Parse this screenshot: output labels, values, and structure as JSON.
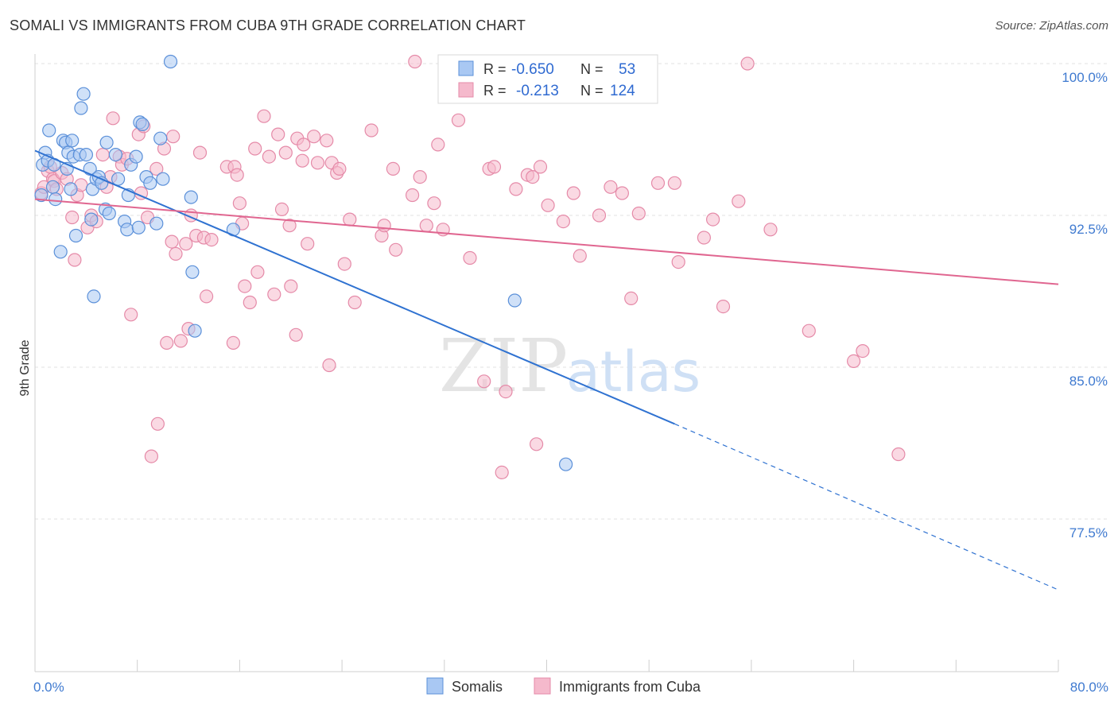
{
  "header": {
    "title": "SOMALI VS IMMIGRANTS FROM CUBA 9TH GRADE CORRELATION CHART",
    "source": "Source: ZipAtlas.com"
  },
  "watermark": {
    "zip": "ZIP",
    "atlas": "atlas"
  },
  "colors": {
    "somali_fill": "#a9c8f3",
    "somali_stroke": "#5b90d9",
    "somali_line": "#2f72d1",
    "cuba_fill": "#f5b9cc",
    "cuba_stroke": "#e58aa8",
    "cuba_line": "#e06690",
    "tick_label": "#3f7ad0",
    "grid": "#e2e2e2"
  },
  "legend": {
    "rows": [
      {
        "r_label": "R =",
        "r_value": "-0.650",
        "n_label": "N =",
        "n_value": "53"
      },
      {
        "r_label": "R =",
        "r_value": "-0.213",
        "n_label": "N =",
        "n_value": "124"
      }
    ]
  },
  "bottom_legend": {
    "series1": "Somalis",
    "series2": "Immigrants from Cuba"
  },
  "chart_data": {
    "type": "scatter",
    "title": "SOMALI VS IMMIGRANTS FROM CUBA 9TH GRADE CORRELATION CHART",
    "xlabel": "",
    "ylabel": "9th Grade",
    "xlim": [
      0,
      80
    ],
    "ylim": [
      72.5,
      100.8
    ],
    "x_tick_labels": [
      "0.0%",
      "80.0%"
    ],
    "y_ticks": [
      77.5,
      85.0,
      92.5,
      100.0
    ],
    "y_tick_labels": [
      "77.5%",
      "85.0%",
      "92.5%",
      "100.0%"
    ],
    "grid": "horizontal dashed",
    "legend_position": "top-center",
    "series": [
      {
        "name": "Somalis",
        "r": -0.65,
        "n": 53,
        "trend": {
          "x_start": 0,
          "y_start": 95.7,
          "x_solid_end": 50,
          "y_solid_end": 82.2,
          "x_end": 80,
          "y_end": 74.0
        },
        "points": [
          [
            0.5,
            93.5
          ],
          [
            0.6,
            95.0
          ],
          [
            0.8,
            95.6
          ],
          [
            1.0,
            95.2
          ],
          [
            1.1,
            96.7
          ],
          [
            1.4,
            93.9
          ],
          [
            1.5,
            95.0
          ],
          [
            1.6,
            93.3
          ],
          [
            2.0,
            90.7
          ],
          [
            2.2,
            96.2
          ],
          [
            2.4,
            96.1
          ],
          [
            2.5,
            94.8
          ],
          [
            2.6,
            95.6
          ],
          [
            2.8,
            93.8
          ],
          [
            2.9,
            96.2
          ],
          [
            3.0,
            95.4
          ],
          [
            3.2,
            91.5
          ],
          [
            3.5,
            95.5
          ],
          [
            3.6,
            97.8
          ],
          [
            3.8,
            98.5
          ],
          [
            4.0,
            95.5
          ],
          [
            4.3,
            94.8
          ],
          [
            4.4,
            92.3
          ],
          [
            4.5,
            93.8
          ],
          [
            4.6,
            88.5
          ],
          [
            4.8,
            94.3
          ],
          [
            5.0,
            94.4
          ],
          [
            5.2,
            94.1
          ],
          [
            5.5,
            92.8
          ],
          [
            5.6,
            96.1
          ],
          [
            5.8,
            92.6
          ],
          [
            6.3,
            95.5
          ],
          [
            6.5,
            94.3
          ],
          [
            7.0,
            92.2
          ],
          [
            7.2,
            91.8
          ],
          [
            7.3,
            93.5
          ],
          [
            7.5,
            95.0
          ],
          [
            7.9,
            95.4
          ],
          [
            8.1,
            91.9
          ],
          [
            8.2,
            97.1
          ],
          [
            8.4,
            97.0
          ],
          [
            8.7,
            94.4
          ],
          [
            9.0,
            94.1
          ],
          [
            9.5,
            92.1
          ],
          [
            9.8,
            96.3
          ],
          [
            10.0,
            94.3
          ],
          [
            10.6,
            100.1
          ],
          [
            12.2,
            93.4
          ],
          [
            12.3,
            89.7
          ],
          [
            12.5,
            86.8
          ],
          [
            15.5,
            91.8
          ],
          [
            37.5,
            88.3
          ],
          [
            41.5,
            80.2
          ]
        ]
      },
      {
        "name": "Immigrants from Cuba",
        "r": -0.213,
        "n": 124,
        "trend": {
          "x_start": 0,
          "y_start": 93.3,
          "x_end": 80,
          "y_end": 89.1
        },
        "points": [
          [
            0.5,
            93.6
          ],
          [
            0.7,
            93.9
          ],
          [
            1.0,
            94.7
          ],
          [
            1.2,
            94.9
          ],
          [
            1.4,
            94.3
          ],
          [
            1.5,
            94.2
          ],
          [
            1.7,
            93.8
          ],
          [
            2.1,
            94.6
          ],
          [
            2.5,
            94.3
          ],
          [
            2.9,
            92.4
          ],
          [
            3.1,
            90.3
          ],
          [
            3.3,
            93.5
          ],
          [
            3.6,
            94.0
          ],
          [
            4.1,
            91.9
          ],
          [
            4.4,
            92.5
          ],
          [
            4.8,
            92.2
          ],
          [
            5.3,
            95.5
          ],
          [
            5.6,
            93.9
          ],
          [
            5.9,
            94.4
          ],
          [
            6.1,
            97.3
          ],
          [
            6.6,
            95.4
          ],
          [
            6.8,
            95.0
          ],
          [
            7.2,
            95.3
          ],
          [
            7.5,
            87.6
          ],
          [
            8.1,
            96.5
          ],
          [
            8.3,
            93.6
          ],
          [
            8.5,
            96.9
          ],
          [
            8.8,
            92.4
          ],
          [
            9.5,
            94.8
          ],
          [
            9.6,
            82.2
          ],
          [
            9.1,
            80.6
          ],
          [
            10.1,
            95.8
          ],
          [
            10.3,
            86.2
          ],
          [
            10.7,
            91.2
          ],
          [
            10.8,
            96.4
          ],
          [
            11.0,
            90.6
          ],
          [
            11.4,
            86.3
          ],
          [
            11.8,
            91.1
          ],
          [
            12.0,
            86.9
          ],
          [
            12.2,
            92.5
          ],
          [
            12.6,
            91.5
          ],
          [
            12.9,
            95.6
          ],
          [
            13.2,
            91.4
          ],
          [
            13.4,
            88.5
          ],
          [
            13.8,
            91.3
          ],
          [
            15.0,
            94.9
          ],
          [
            15.5,
            86.2
          ],
          [
            15.6,
            94.9
          ],
          [
            15.8,
            94.5
          ],
          [
            16.0,
            93.1
          ],
          [
            16.2,
            92.1
          ],
          [
            16.4,
            89.0
          ],
          [
            16.8,
            88.2
          ],
          [
            17.2,
            95.8
          ],
          [
            17.4,
            89.7
          ],
          [
            17.9,
            97.4
          ],
          [
            18.3,
            95.4
          ],
          [
            18.7,
            88.6
          ],
          [
            19.0,
            96.5
          ],
          [
            19.3,
            92.8
          ],
          [
            19.6,
            95.6
          ],
          [
            19.9,
            92.0
          ],
          [
            20.0,
            89.0
          ],
          [
            20.4,
            86.6
          ],
          [
            20.5,
            96.3
          ],
          [
            20.9,
            95.2
          ],
          [
            21.0,
            96.0
          ],
          [
            21.3,
            91.1
          ],
          [
            21.8,
            96.4
          ],
          [
            22.1,
            95.1
          ],
          [
            22.8,
            96.2
          ],
          [
            23.0,
            85.1
          ],
          [
            23.2,
            95.1
          ],
          [
            23.6,
            94.6
          ],
          [
            23.8,
            94.8
          ],
          [
            24.2,
            90.1
          ],
          [
            24.6,
            92.3
          ],
          [
            25.0,
            88.2
          ],
          [
            26.3,
            96.7
          ],
          [
            27.1,
            91.5
          ],
          [
            27.3,
            92.0
          ],
          [
            28.0,
            94.8
          ],
          [
            28.2,
            90.8
          ],
          [
            29.5,
            93.5
          ],
          [
            29.7,
            100.1
          ],
          [
            30.1,
            94.4
          ],
          [
            30.6,
            92.0
          ],
          [
            31.2,
            93.1
          ],
          [
            31.5,
            96.0
          ],
          [
            31.9,
            91.8
          ],
          [
            33.1,
            97.2
          ],
          [
            34.0,
            90.4
          ],
          [
            35.1,
            84.3
          ],
          [
            35.5,
            94.8
          ],
          [
            35.9,
            94.9
          ],
          [
            36.5,
            79.8
          ],
          [
            36.8,
            83.8
          ],
          [
            37.6,
            93.8
          ],
          [
            38.5,
            94.5
          ],
          [
            38.9,
            94.4
          ],
          [
            39.2,
            81.2
          ],
          [
            39.5,
            94.9
          ],
          [
            40.1,
            93.0
          ],
          [
            41.3,
            92.2
          ],
          [
            42.1,
            93.6
          ],
          [
            42.6,
            90.5
          ],
          [
            44.1,
            92.5
          ],
          [
            45.0,
            93.9
          ],
          [
            45.9,
            93.6
          ],
          [
            46.6,
            88.4
          ],
          [
            47.2,
            92.6
          ],
          [
            48.7,
            94.1
          ],
          [
            50.0,
            94.1
          ],
          [
            50.3,
            90.2
          ],
          [
            52.3,
            91.4
          ],
          [
            53.0,
            92.3
          ],
          [
            53.8,
            88.0
          ],
          [
            55.0,
            93.2
          ],
          [
            55.7,
            100.0
          ],
          [
            57.5,
            91.8
          ],
          [
            60.5,
            86.8
          ],
          [
            64.0,
            85.3
          ],
          [
            64.7,
            85.8
          ],
          [
            67.5,
            80.7
          ]
        ]
      }
    ]
  }
}
